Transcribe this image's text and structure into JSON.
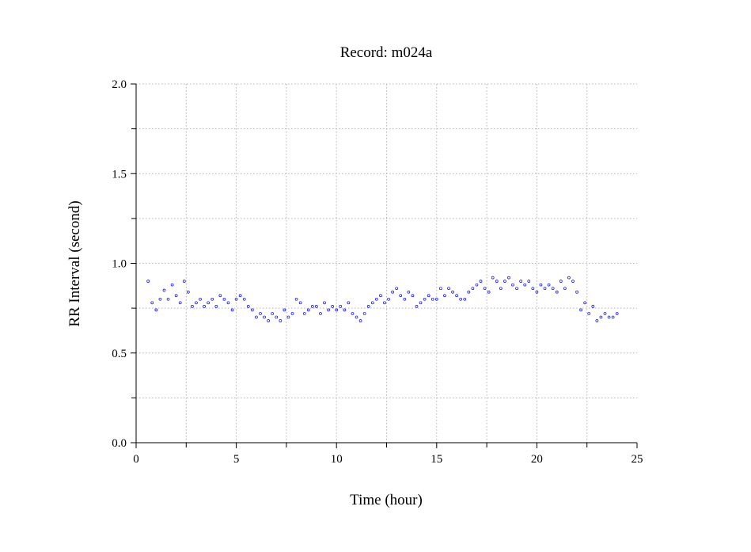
{
  "chart_data": {
    "type": "scatter",
    "title": "Record:  m024a",
    "xlabel": "Time (hour)",
    "ylabel": "RR Interval (second)",
    "xlim": [
      0,
      25
    ],
    "ylim": [
      0,
      2.0
    ],
    "x_ticks": [
      0,
      5,
      10,
      15,
      20,
      25
    ],
    "x_tick_labels": [
      "0",
      "5",
      "10",
      "15",
      "20",
      "25"
    ],
    "x_minor_ticks": [
      2.5,
      7.5,
      12.5,
      17.5,
      22.5
    ],
    "y_ticks": [
      0,
      0.5,
      1.0,
      1.5,
      2.0
    ],
    "y_tick_labels": [
      "0.0",
      "0.5",
      "1.0",
      "1.5",
      "2.0"
    ],
    "y_minor_ticks": [
      0.25,
      0.75,
      1.25,
      1.75
    ],
    "grid": true,
    "marker": "open circle",
    "point_color": "#0000ff",
    "series": [
      {
        "x": [
          0.6,
          0.8,
          1.0,
          1.2,
          1.4,
          1.6,
          1.8,
          2.0,
          2.2,
          2.4,
          2.6,
          2.8,
          3.0,
          3.2,
          3.4,
          3.6,
          3.8,
          4.0,
          4.2,
          4.4,
          4.6,
          4.8,
          5.0,
          5.2,
          5.4,
          5.6,
          5.8,
          6.0,
          6.2,
          6.4,
          6.6,
          6.8,
          7.0,
          7.2,
          7.4,
          7.6,
          7.8,
          8.0,
          8.2,
          8.4,
          8.6,
          8.8,
          9.0,
          9.2,
          9.4,
          9.6,
          9.8,
          10.0,
          10.2,
          10.4,
          10.6,
          10.8,
          11.0,
          11.2,
          11.4,
          11.6,
          11.8,
          12.0,
          12.2,
          12.4,
          12.6,
          12.8,
          13.0,
          13.2,
          13.4,
          13.6,
          13.8,
          14.0,
          14.2,
          14.4,
          14.6,
          14.8,
          15.0,
          15.2,
          15.4,
          15.6,
          15.8,
          16.0,
          16.2,
          16.4,
          16.6,
          16.8,
          17.0,
          17.2,
          17.4,
          17.6,
          17.8,
          18.0,
          18.2,
          18.4,
          18.6,
          18.8,
          19.0,
          19.2,
          19.4,
          19.6,
          19.8,
          20.0,
          20.2,
          20.4,
          20.6,
          20.8,
          21.0,
          21.2,
          21.4,
          21.6,
          21.8,
          22.0,
          22.2,
          22.4,
          22.6,
          22.8,
          23.0,
          23.2,
          23.4,
          23.6,
          23.8,
          24.0
        ],
        "y": [
          0.9,
          0.78,
          0.74,
          0.8,
          0.85,
          0.8,
          0.88,
          0.82,
          0.78,
          0.9,
          0.84,
          0.76,
          0.78,
          0.8,
          0.76,
          0.78,
          0.8,
          0.76,
          0.82,
          0.8,
          0.78,
          0.74,
          0.8,
          0.82,
          0.8,
          0.76,
          0.74,
          0.7,
          0.72,
          0.7,
          0.68,
          0.72,
          0.7,
          0.68,
          0.74,
          0.7,
          0.72,
          0.8,
          0.78,
          0.72,
          0.74,
          0.76,
          0.76,
          0.72,
          0.78,
          0.74,
          0.76,
          0.74,
          0.76,
          0.74,
          0.78,
          0.72,
          0.7,
          0.68,
          0.72,
          0.76,
          0.78,
          0.8,
          0.82,
          0.78,
          0.8,
          0.84,
          0.86,
          0.82,
          0.8,
          0.84,
          0.82,
          0.76,
          0.78,
          0.8,
          0.82,
          0.8,
          0.8,
          0.86,
          0.82,
          0.86,
          0.84,
          0.82,
          0.8,
          0.8,
          0.84,
          0.86,
          0.88,
          0.9,
          0.86,
          0.84,
          0.92,
          0.9,
          0.86,
          0.9,
          0.92,
          0.88,
          0.86,
          0.9,
          0.88,
          0.9,
          0.86,
          0.84,
          0.88,
          0.86,
          0.88,
          0.86,
          0.84,
          0.9,
          0.86,
          0.92,
          0.9,
          0.84,
          0.74,
          0.78,
          0.72,
          0.76,
          0.68,
          0.7,
          0.72,
          0.7,
          0.7,
          0.72
        ]
      }
    ]
  }
}
